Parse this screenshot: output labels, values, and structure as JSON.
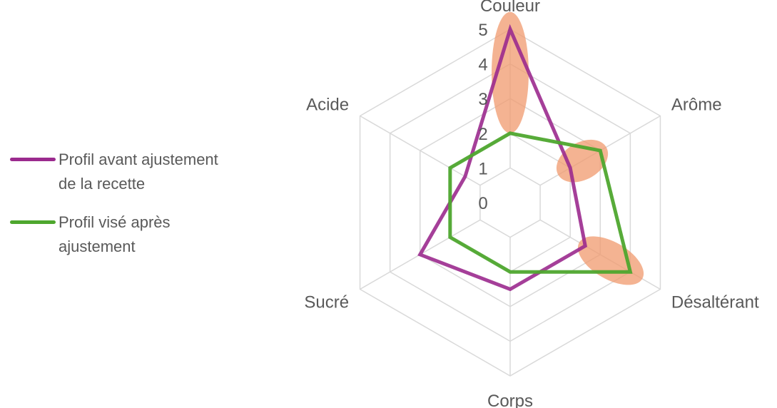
{
  "chart_data": {
    "type": "radar",
    "axes": [
      "Couleur",
      "Arôme",
      "Désaltérant",
      "Corps",
      "Sucré",
      "Acide"
    ],
    "rlim": [
      0,
      5
    ],
    "ticks": [
      "0",
      "1",
      "2",
      "3",
      "4",
      "5"
    ],
    "grid": true,
    "legend_position": "left",
    "series": [
      {
        "name": "Profil avant ajustement\nde la recette",
        "color": "#9B2A8E",
        "values": [
          5,
          2,
          2.5,
          2.5,
          3,
          1.5
        ]
      },
      {
        "name": "Profil visé après\najustement",
        "color": "#4EA72E",
        "values": [
          2,
          3,
          4,
          2,
          2,
          2
        ]
      }
    ],
    "highlights": [
      {
        "axis": "Couleur",
        "from": 2,
        "to": 5.5,
        "color": "#F09A6E"
      },
      {
        "axis": "Arôme",
        "from": 1.6,
        "to": 3.2,
        "color": "#F09A6E"
      },
      {
        "axis": "Désaltérant",
        "from": 2.3,
        "to": 4.4,
        "color": "#F09A6E"
      }
    ]
  }
}
